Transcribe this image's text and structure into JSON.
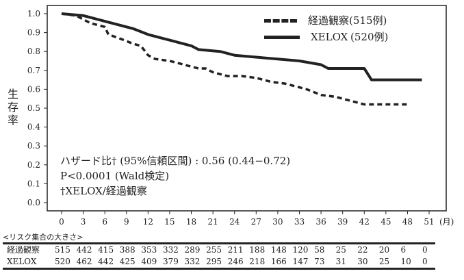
{
  "chart_data": {
    "type": "line",
    "title": "",
    "xlabel": "(月)",
    "ylabel": "生存率",
    "xlim": [
      0,
      51
    ],
    "ylim": [
      0,
      1.0
    ],
    "x_ticks": [
      "0",
      "3",
      "6",
      "9",
      "12",
      "15",
      "18",
      "21",
      "24",
      "27",
      "30",
      "33",
      "36",
      "39",
      "42",
      "45",
      "48",
      "51"
    ],
    "y_ticks": [
      "0.0",
      "0.1",
      "0.2",
      "0.3",
      "0.4",
      "0.5",
      "0.6",
      "0.7",
      "0.8",
      "0.9",
      "1.0"
    ],
    "grid": false,
    "legend_position": "top-right",
    "series": [
      {
        "name": "経過観察",
        "legend_label": "経過観察",
        "legend_count": "(515例)",
        "style": "dashed",
        "points": [
          [
            0,
            1.0
          ],
          [
            2,
            0.99
          ],
          [
            4,
            0.95
          ],
          [
            6,
            0.93
          ],
          [
            6.5,
            0.89
          ],
          [
            8,
            0.87
          ],
          [
            10,
            0.84
          ],
          [
            11,
            0.83
          ],
          [
            12,
            0.78
          ],
          [
            13,
            0.76
          ],
          [
            15,
            0.75
          ],
          [
            17,
            0.73
          ],
          [
            18,
            0.72
          ],
          [
            19,
            0.71
          ],
          [
            20,
            0.71
          ],
          [
            21,
            0.69
          ],
          [
            23,
            0.67
          ],
          [
            25,
            0.67
          ],
          [
            27,
            0.66
          ],
          [
            29,
            0.64
          ],
          [
            31,
            0.63
          ],
          [
            33,
            0.61
          ],
          [
            34,
            0.6
          ],
          [
            36,
            0.57
          ],
          [
            38,
            0.56
          ],
          [
            39,
            0.55
          ],
          [
            41,
            0.53
          ],
          [
            42,
            0.52
          ],
          [
            48,
            0.52
          ]
        ]
      },
      {
        "name": "XELOX",
        "legend_label": "XELOX",
        "legend_count": "(520例)",
        "style": "solid",
        "points": [
          [
            0,
            1.0
          ],
          [
            3,
            0.99
          ],
          [
            5,
            0.97
          ],
          [
            7,
            0.95
          ],
          [
            10,
            0.92
          ],
          [
            12,
            0.89
          ],
          [
            14,
            0.87
          ],
          [
            16,
            0.85
          ],
          [
            18,
            0.83
          ],
          [
            19,
            0.81
          ],
          [
            22,
            0.8
          ],
          [
            24,
            0.78
          ],
          [
            27,
            0.77
          ],
          [
            30,
            0.76
          ],
          [
            33,
            0.75
          ],
          [
            36,
            0.73
          ],
          [
            37,
            0.71
          ],
          [
            42,
            0.71
          ],
          [
            43,
            0.65
          ],
          [
            50,
            0.65
          ]
        ]
      }
    ],
    "annotations": [
      "ハザード比† (95%信頼区間) : 0.56 (0.44−0.72)",
      "P<0.0001 (Wald検定)",
      "†XELOX/経過観察"
    ]
  },
  "risk_table": {
    "title": "<リスク集合の大きさ>",
    "rows": [
      {
        "label": "経過観察",
        "values": [
          "515",
          "442",
          "415",
          "388",
          "353",
          "332",
          "289",
          "255",
          "211",
          "188",
          "148",
          "120",
          "58",
          "25",
          "22",
          "20",
          "6",
          "0"
        ]
      },
      {
        "label": "XELOX",
        "values": [
          "520",
          "462",
          "442",
          "425",
          "409",
          "379",
          "332",
          "295",
          "246",
          "218",
          "166",
          "147",
          "73",
          "31",
          "30",
          "25",
          "10",
          "0"
        ]
      }
    ]
  },
  "colors": {
    "line": "#222222",
    "background": "#ffffff"
  }
}
